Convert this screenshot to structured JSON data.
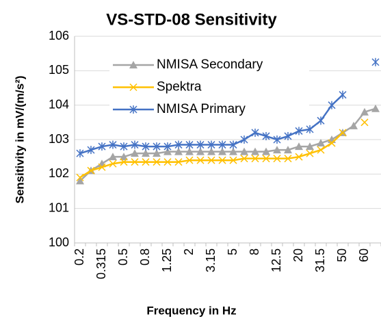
{
  "chart_data": {
    "type": "line",
    "title": "VS-STD-08 Sensitivity",
    "x_label": "Frequency in Hz",
    "y_label": "Sensitivity in mV/(m/s²)",
    "categories": [
      "0.2",
      null,
      "0.315",
      null,
      "0.5",
      null,
      "0.8",
      null,
      "1.25",
      null,
      "2",
      null,
      "3.15",
      null,
      "5",
      null,
      "8",
      null,
      "12.5",
      null,
      "20",
      null,
      "31.5",
      null,
      "50",
      null,
      "60",
      null
    ],
    "series": [
      {
        "name": "NMISA Secondary",
        "color": "#a5a5a5",
        "marker": "triangle",
        "values": [
          101.8,
          102.1,
          102.3,
          102.5,
          102.5,
          102.6,
          102.6,
          102.6,
          102.65,
          102.65,
          102.65,
          102.65,
          102.65,
          102.65,
          102.65,
          102.65,
          102.65,
          102.65,
          102.7,
          102.7,
          102.8,
          102.8,
          102.9,
          103.0,
          103.2,
          103.4,
          103.8,
          103.9
        ]
      },
      {
        "name": "Spektra",
        "color": "#ffc000",
        "marker": "x",
        "values": [
          101.9,
          102.1,
          102.2,
          102.3,
          102.35,
          102.35,
          102.35,
          102.35,
          102.35,
          102.35,
          102.4,
          102.4,
          102.4,
          102.4,
          102.4,
          102.45,
          102.45,
          102.45,
          102.45,
          102.45,
          102.5,
          102.6,
          102.7,
          102.9,
          103.2,
          null,
          103.5,
          null
        ]
      },
      {
        "name": "NMISA Primary",
        "color": "#4472c4",
        "marker": "star",
        "values": [
          102.6,
          102.7,
          102.8,
          102.85,
          102.8,
          102.85,
          102.8,
          102.8,
          102.8,
          102.85,
          102.85,
          102.85,
          102.85,
          102.85,
          102.85,
          103.0,
          103.2,
          103.1,
          103.0,
          103.1,
          103.25,
          103.3,
          103.55,
          104.0,
          104.3,
          null,
          null,
          105.25
        ]
      }
    ],
    "ylim": [
      100,
      106
    ],
    "yticks": [
      100,
      101,
      102,
      103,
      104,
      105,
      106
    ],
    "grid": true,
    "legend": "upper left"
  }
}
